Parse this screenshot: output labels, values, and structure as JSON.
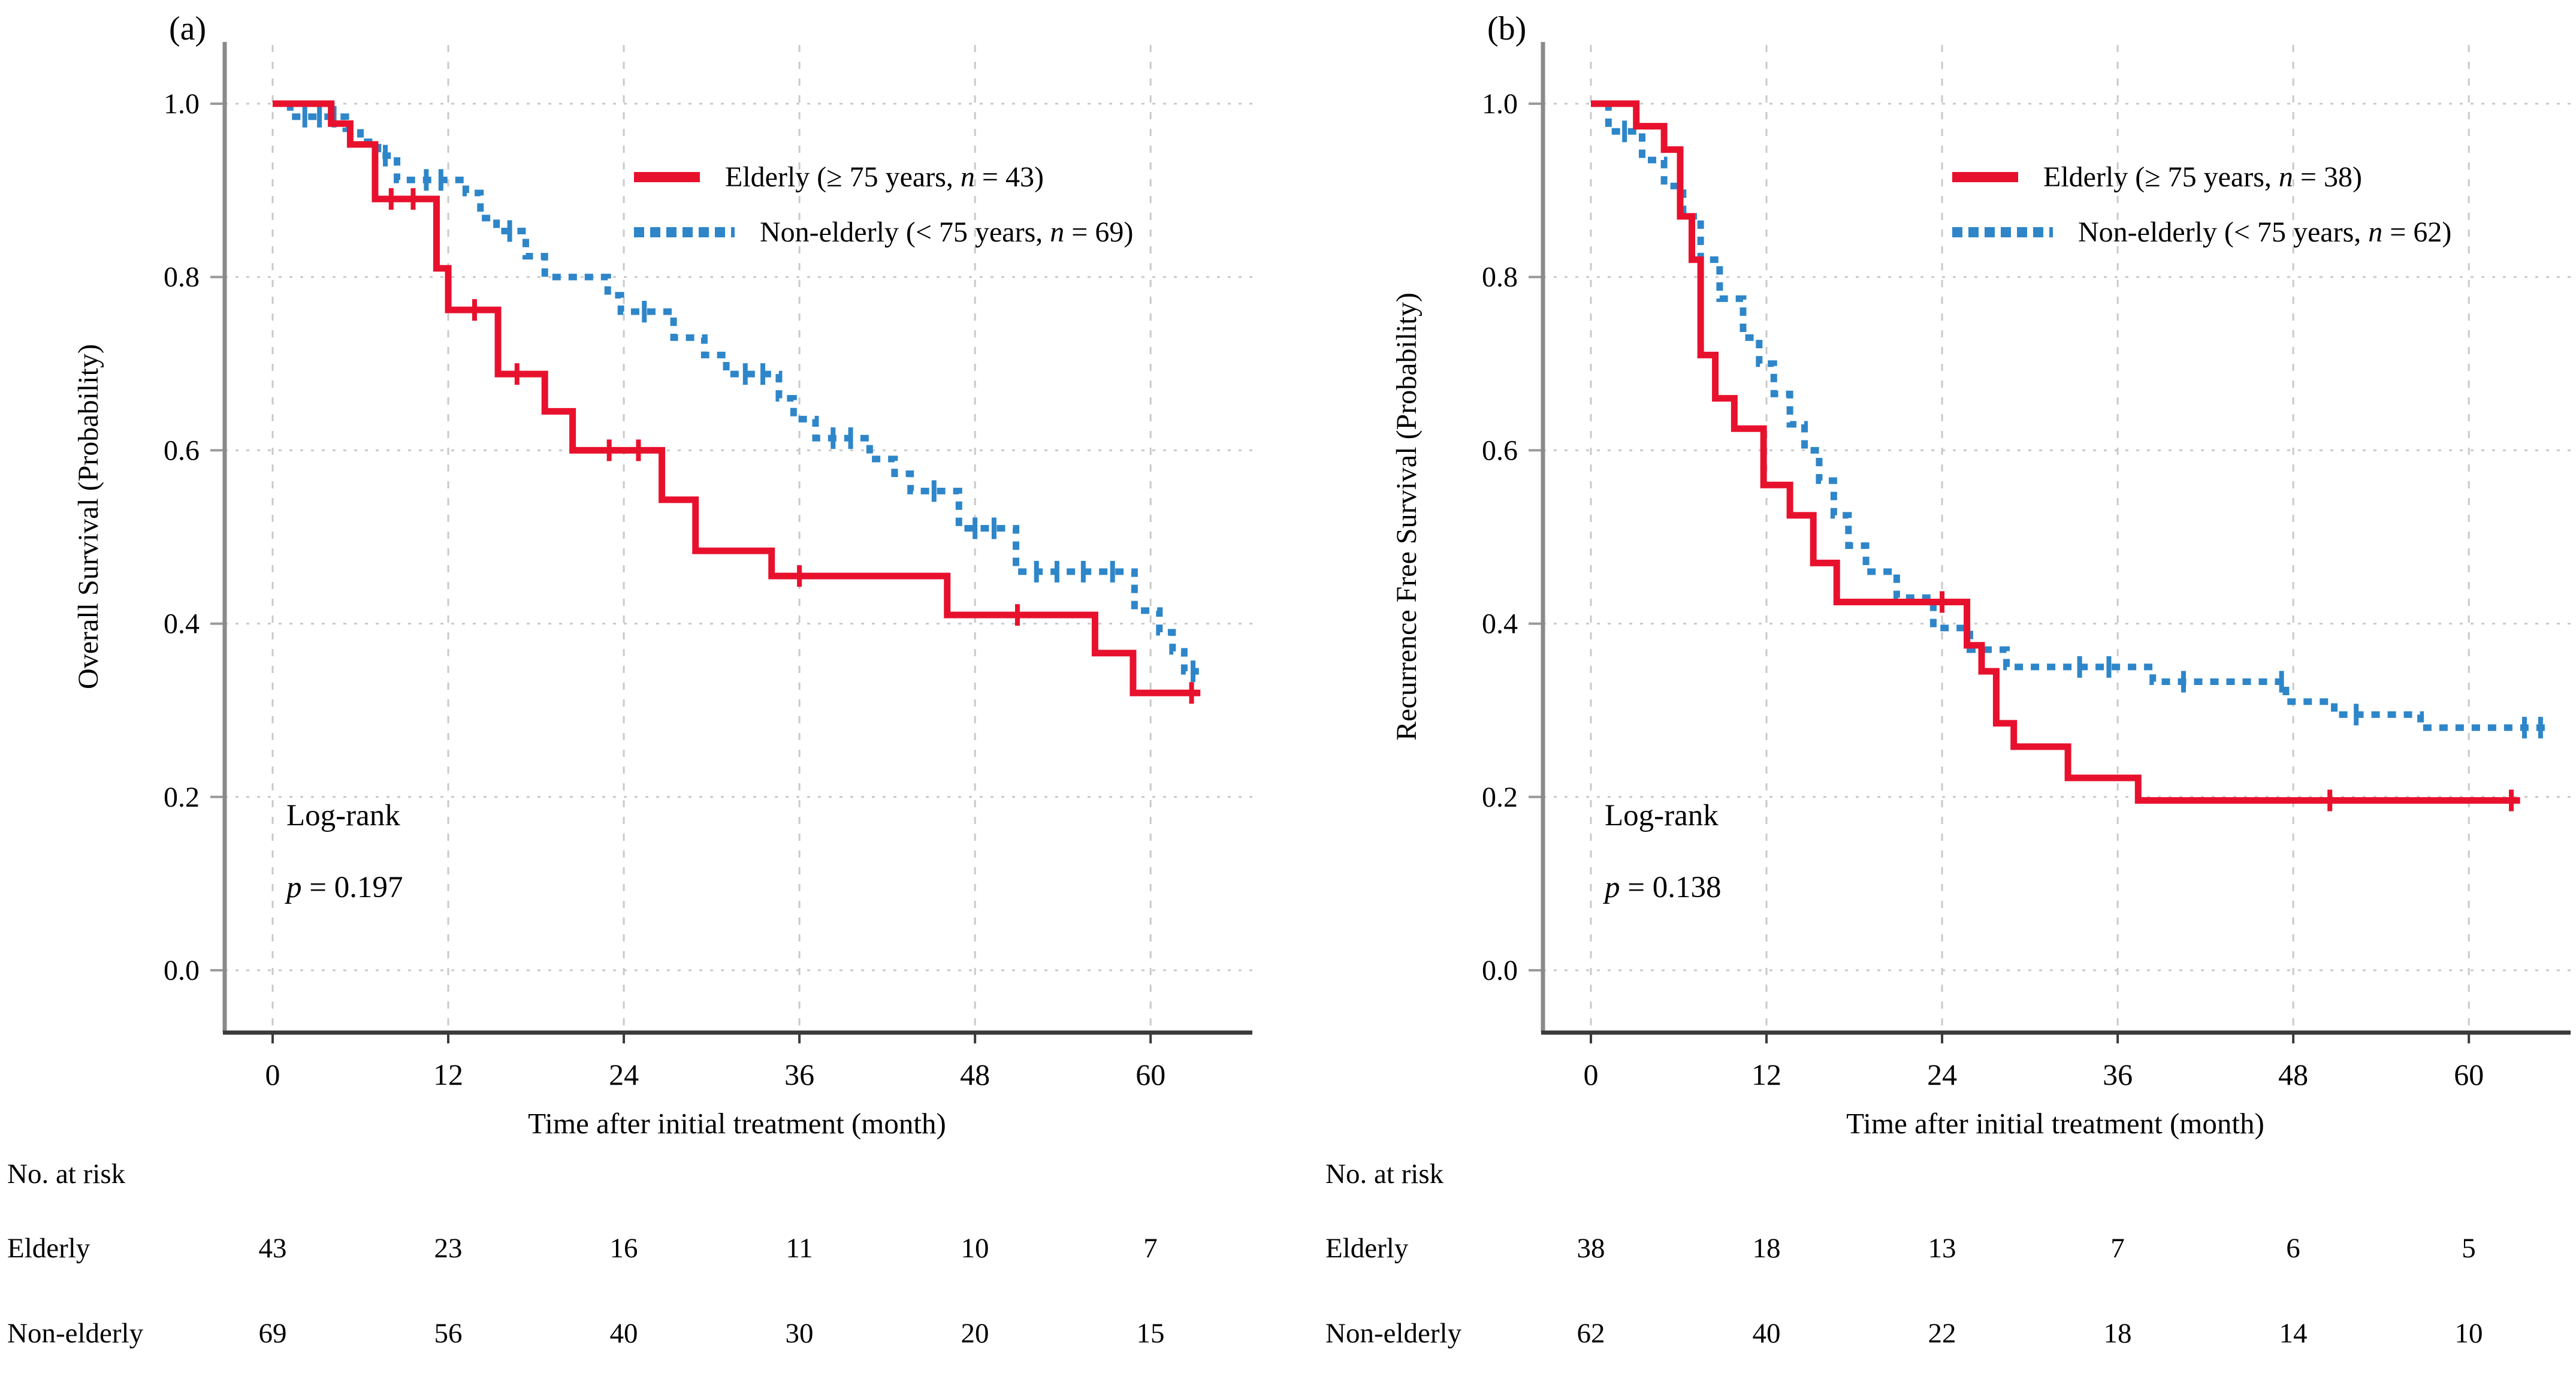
{
  "colors": {
    "red": "#e8112d",
    "blue": "#2e86c9",
    "grid": "#c9c9c9",
    "axis_y": "#8a8a8a",
    "axis_x": "#3a3a3a",
    "text": "#000000"
  },
  "panels": [
    {
      "tag": "(a)",
      "ylabel": "Overall Survival (Probability)",
      "xlabel": "Time after initial treatment (month)",
      "yticks": [
        "1.0",
        "0.8",
        "0.6",
        "0.4",
        "0.2",
        "0.0"
      ],
      "xticks": [
        "0",
        "12",
        "24",
        "36",
        "48",
        "60"
      ],
      "legend": [
        {
          "pre": "Elderly (≥ 75 years, ",
          "nsym": "n",
          "post": " = 43)"
        },
        {
          "pre": "Non-elderly (< 75 years, ",
          "nsym": "n",
          "post": " = 69)"
        }
      ],
      "logrank_line1": "Log-rank",
      "logrank_psym": "p",
      "logrank_rest": " = 0.197",
      "risk": {
        "title": "No. at risk",
        "rows": [
          {
            "label": "Elderly",
            "values": [
              "43",
              "23",
              "16",
              "11",
              "10",
              "7"
            ]
          },
          {
            "label": "Non-elderly",
            "values": [
              "69",
              "56",
              "40",
              "30",
              "20",
              "15"
            ]
          }
        ]
      }
    },
    {
      "tag": "(b)",
      "ylabel": "Recurrence Free Survival (Probability)",
      "xlabel": "Time after initial treatment (month)",
      "yticks": [
        "1.0",
        "0.8",
        "0.6",
        "0.4",
        "0.2",
        "0.0"
      ],
      "xticks": [
        "0",
        "12",
        "24",
        "36",
        "48",
        "60"
      ],
      "legend": [
        {
          "pre": "Elderly (≥ 75 years, ",
          "nsym": "n",
          "post": " = 38)"
        },
        {
          "pre": "Non-elderly (< 75 years, ",
          "nsym": "n",
          "post": " = 62)"
        }
      ],
      "logrank_line1": "Log-rank",
      "logrank_psym": "p",
      "logrank_rest": " = 0.138",
      "risk": {
        "title": "No. at risk",
        "rows": [
          {
            "label": "Elderly",
            "values": [
              "38",
              "18",
              "13",
              "7",
              "6",
              "5"
            ]
          },
          {
            "label": "Non-elderly",
            "values": [
              "62",
              "40",
              "22",
              "18",
              "14",
              "10"
            ]
          }
        ]
      }
    }
  ],
  "chart_data": [
    {
      "type": "line",
      "subtype": "kaplan-meier-step",
      "title": "Overall Survival",
      "xlabel": "Time after initial treatment (month)",
      "ylabel": "Overall Survival (Probability)",
      "xlim": [
        0,
        67
      ],
      "ylim": [
        0,
        1.05
      ],
      "xticks": [
        0,
        12,
        24,
        36,
        48,
        60
      ],
      "yticks": [
        1.0,
        0.8,
        0.6,
        0.4,
        0.2,
        0.0
      ],
      "grid": true,
      "legend_position": "upper right",
      "series": [
        {
          "name": "Elderly (>=75 years, n=43)",
          "color": "red",
          "style": "solid",
          "end": 63.4,
          "steps": [
            [
              0,
              1.0
            ],
            [
              4.0,
              0.977
            ],
            [
              5.3,
              0.953
            ],
            [
              7.0,
              0.89
            ],
            [
              11.2,
              0.81
            ],
            [
              12.0,
              0.762
            ],
            [
              15.4,
              0.688
            ],
            [
              18.6,
              0.645
            ],
            [
              20.5,
              0.6
            ],
            [
              26.6,
              0.543
            ],
            [
              28.9,
              0.484
            ],
            [
              34.1,
              0.455
            ],
            [
              46.1,
              0.41
            ],
            [
              56.2,
              0.366
            ],
            [
              58.8,
              0.32
            ]
          ],
          "censors": [
            [
              8.1,
              0.89
            ],
            [
              9.6,
              0.89
            ],
            [
              13.8,
              0.762
            ],
            [
              16.7,
              0.688
            ],
            [
              23.0,
              0.6
            ],
            [
              25.0,
              0.6
            ],
            [
              36.0,
              0.455
            ],
            [
              50.9,
              0.41
            ],
            [
              62.8,
              0.32
            ]
          ]
        },
        {
          "name": "Non-elderly (<75 years, n=69)",
          "color": "blue",
          "style": "dotted",
          "end": 63.3,
          "steps": [
            [
              0,
              1.0
            ],
            [
              1.2,
              0.985
            ],
            [
              5.0,
              0.971
            ],
            [
              6.0,
              0.956
            ],
            [
              7.2,
              0.94
            ],
            [
              8.5,
              0.912
            ],
            [
              13.2,
              0.897
            ],
            [
              14.2,
              0.868
            ],
            [
              15.3,
              0.853
            ],
            [
              17.3,
              0.824
            ],
            [
              18.6,
              0.8
            ],
            [
              22.9,
              0.779
            ],
            [
              23.8,
              0.76
            ],
            [
              27.4,
              0.73
            ],
            [
              29.5,
              0.71
            ],
            [
              31.0,
              0.688
            ],
            [
              34.6,
              0.66
            ],
            [
              35.6,
              0.636
            ],
            [
              37.1,
              0.614
            ],
            [
              40.8,
              0.59
            ],
            [
              42.5,
              0.573
            ],
            [
              43.6,
              0.553
            ],
            [
              46.9,
              0.51
            ],
            [
              50.8,
              0.46
            ],
            [
              58.9,
              0.415
            ],
            [
              60.6,
              0.39
            ],
            [
              61.5,
              0.368
            ],
            [
              62.3,
              0.345
            ]
          ],
          "censors": [
            [
              2.2,
              0.985
            ],
            [
              3.2,
              0.985
            ],
            [
              4.2,
              0.985
            ],
            [
              7.7,
              0.94
            ],
            [
              10.5,
              0.912
            ],
            [
              11.5,
              0.912
            ],
            [
              16.2,
              0.853
            ],
            [
              25.4,
              0.76
            ],
            [
              32.3,
              0.688
            ],
            [
              33.5,
              0.688
            ],
            [
              38.3,
              0.614
            ],
            [
              39.5,
              0.614
            ],
            [
              45.2,
              0.553
            ],
            [
              48.0,
              0.51
            ],
            [
              49.3,
              0.51
            ],
            [
              52.2,
              0.46
            ],
            [
              53.6,
              0.46
            ],
            [
              55.4,
              0.46
            ],
            [
              57.4,
              0.46
            ],
            [
              62.9,
              0.345
            ]
          ]
        }
      ],
      "annotations": [
        "Log-rank p = 0.197"
      ]
    },
    {
      "type": "line",
      "subtype": "kaplan-meier-step",
      "title": "Recurrence Free Survival",
      "xlabel": "Time after initial treatment (month)",
      "ylabel": "Recurrence Free Survival (Probability)",
      "xlim": [
        0,
        67
      ],
      "ylim": [
        0,
        1.05
      ],
      "xticks": [
        0,
        12,
        24,
        36,
        48,
        60
      ],
      "yticks": [
        1.0,
        0.8,
        0.6,
        0.4,
        0.2,
        0.0
      ],
      "grid": true,
      "legend_position": "upper right",
      "series": [
        {
          "name": "Elderly (>=75 years, n=38)",
          "color": "red",
          "style": "solid",
          "end": 63.5,
          "steps": [
            [
              0,
              1.0
            ],
            [
              3.1,
              0.974
            ],
            [
              5.0,
              0.947
            ],
            [
              6.1,
              0.87
            ],
            [
              6.9,
              0.82
            ],
            [
              7.5,
              0.71
            ],
            [
              8.5,
              0.66
            ],
            [
              9.8,
              0.625
            ],
            [
              11.8,
              0.56
            ],
            [
              13.6,
              0.525
            ],
            [
              15.2,
              0.47
            ],
            [
              16.8,
              0.425
            ],
            [
              25.7,
              0.375
            ],
            [
              26.7,
              0.345
            ],
            [
              27.7,
              0.285
            ],
            [
              28.9,
              0.258
            ],
            [
              32.6,
              0.222
            ],
            [
              37.4,
              0.196
            ]
          ],
          "censors": [
            [
              24.0,
              0.425
            ],
            [
              50.5,
              0.196
            ],
            [
              62.9,
              0.196
            ]
          ]
        },
        {
          "name": "Non-elderly (<75 years, n=62)",
          "color": "blue",
          "style": "dotted",
          "end": 65.2,
          "steps": [
            [
              0,
              1.0
            ],
            [
              1.2,
              0.968
            ],
            [
              3.5,
              0.935
            ],
            [
              5.0,
              0.905
            ],
            [
              6.3,
              0.87
            ],
            [
              7.5,
              0.82
            ],
            [
              8.8,
              0.775
            ],
            [
              10.4,
              0.73
            ],
            [
              11.5,
              0.7
            ],
            [
              12.5,
              0.665
            ],
            [
              13.6,
              0.63
            ],
            [
              14.6,
              0.6
            ],
            [
              15.6,
              0.565
            ],
            [
              16.6,
              0.525
            ],
            [
              17.6,
              0.49
            ],
            [
              18.8,
              0.46
            ],
            [
              20.9,
              0.43
            ],
            [
              23.4,
              0.395
            ],
            [
              25.9,
              0.37
            ],
            [
              28.4,
              0.35
            ],
            [
              38.4,
              0.333
            ],
            [
              47.5,
              0.31
            ],
            [
              50.8,
              0.295
            ],
            [
              56.7,
              0.28
            ]
          ],
          "censors": [
            [
              2.3,
              0.968
            ],
            [
              33.4,
              0.35
            ],
            [
              35.4,
              0.35
            ],
            [
              40.5,
              0.333
            ],
            [
              47.2,
              0.333
            ],
            [
              52.3,
              0.295
            ],
            [
              63.8,
              0.28
            ],
            [
              64.9,
              0.28
            ]
          ]
        }
      ],
      "annotations": [
        "Log-rank p = 0.138"
      ]
    }
  ]
}
